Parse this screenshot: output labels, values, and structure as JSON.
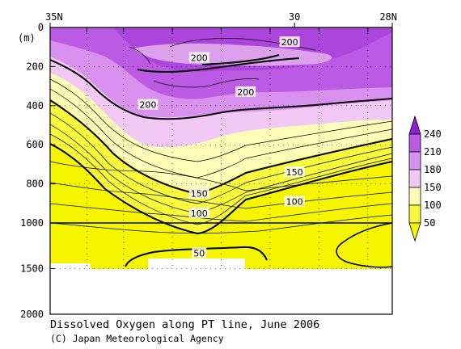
{
  "chart_data": {
    "type": "heatmap",
    "title": "Dissolved Oxygen along PT line, June 2006",
    "credit": "(C) Japan Meteorological Agency",
    "y_unit_label": "(m)",
    "x_ticks": [
      {
        "lat": 35,
        "label": "35N"
      },
      {
        "lat": 30,
        "label": "30"
      },
      {
        "lat": 28,
        "label": "28N"
      }
    ],
    "xlim": [
      35,
      28
    ],
    "station_latitudes": [
      34.25,
      33.5,
      32.5,
      31.5,
      30.5,
      29.5,
      28.5
    ],
    "y_ticks": [
      {
        "depth": 0,
        "label": "0"
      },
      {
        "depth": 200,
        "label": "200"
      },
      {
        "depth": 400,
        "label": "400"
      },
      {
        "depth": 600,
        "label": "600"
      },
      {
        "depth": 800,
        "label": "800"
      },
      {
        "depth": 1000,
        "label": "1000"
      },
      {
        "depth": 1500,
        "label": "1500"
      },
      {
        "depth": 2000,
        "label": "2000"
      }
    ],
    "depth_axis_break": 1000,
    "ylim": [
      0,
      2000
    ],
    "color_levels": [
      50,
      100,
      150,
      180,
      210,
      240
    ],
    "colorbar": [
      {
        "from": 240,
        "to": null,
        "color": "#8f1fcf"
      },
      {
        "from": 210,
        "to": 240,
        "color": "#bb5ae2"
      },
      {
        "from": 180,
        "to": 210,
        "color": "#d891ee"
      },
      {
        "from": 150,
        "to": 180,
        "color": "#f2c9f4"
      },
      {
        "from": 100,
        "to": 150,
        "color": "#fdfdb8"
      },
      {
        "from": 50,
        "to": 100,
        "color": "#f8f83c"
      },
      {
        "from": null,
        "to": 50,
        "color": "#f5f500"
      }
    ],
    "colorbar_labels": [
      "240",
      "210",
      "180",
      "150",
      "100",
      "50"
    ],
    "contour_labels": [
      {
        "value": "200",
        "lat": 30.1,
        "depth": 75
      },
      {
        "value": "200",
        "lat": 31.95,
        "depth": 155
      },
      {
        "value": "200",
        "lat": 33.0,
        "depth": 395
      },
      {
        "value": "200",
        "lat": 31.0,
        "depth": 330
      },
      {
        "value": "150",
        "lat": 30.0,
        "depth": 740
      },
      {
        "value": "150",
        "lat": 31.95,
        "depth": 850
      },
      {
        "value": "100",
        "lat": 30.0,
        "depth": 890
      },
      {
        "value": "100",
        "lat": 31.95,
        "depth": 950
      },
      {
        "value": "50",
        "lat": 31.95,
        "depth": 1330
      }
    ],
    "bottom_depth": 1500,
    "grid": true
  }
}
